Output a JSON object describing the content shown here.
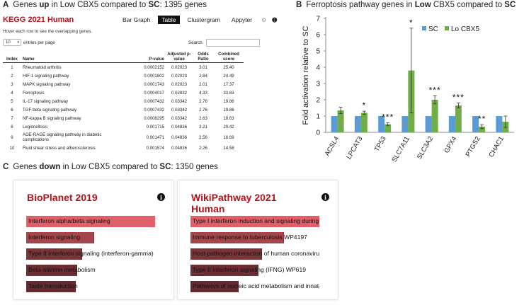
{
  "panel_a": {
    "letter": "A",
    "heading_pre": "Genes ",
    "heading_bold1": "up",
    "heading_mid": " in Low CBX5 compared to ",
    "heading_bold2": "SC",
    "heading_post": ": 1395 genes",
    "kegg_title": "KEGG 2021 Human",
    "tabs": [
      "Bar Graph",
      "Table",
      "Clustergram",
      "Appyter"
    ],
    "active_tab": "Table",
    "hover_note": "Hover each row to see the overlapping genes.",
    "entries_value": "10",
    "entries_label": "entries per page",
    "search_label": "Search:",
    "columns": {
      "index": "Index",
      "name": "Name",
      "pvalue": "P-value",
      "adj_pvalue": "Adjusted p-value",
      "odds": "Odds Ratio",
      "combined": "Combined score"
    },
    "rows": [
      {
        "index": "1",
        "name": "Rheumatoid arthritis",
        "pvalue": "0.0002152",
        "adj": "0.02023",
        "odds": "3.01",
        "combined": "25.40"
      },
      {
        "index": "2",
        "name": "HIF-1 signaling pathway",
        "pvalue": "0.0001802",
        "adj": "0.02023",
        "odds": "2.84",
        "combined": "24.49"
      },
      {
        "index": "3",
        "name": "MAPK signaling pathway",
        "pvalue": "0.0001743",
        "adj": "0.02023",
        "odds": "2.01",
        "combined": "17.37"
      },
      {
        "index": "4",
        "name": "Ferroptosis",
        "pvalue": "0.0004017",
        "adj": "0.02832",
        "odds": "4.33",
        "combined": "33.83"
      },
      {
        "index": "5",
        "name": "IL-17 signaling pathway",
        "pvalue": "0.0007432",
        "adj": "0.03342",
        "odds": "2.76",
        "combined": "19.86"
      },
      {
        "index": "6",
        "name": "TGF-beta signaling pathway",
        "pvalue": "0.0007432",
        "adj": "0.03342",
        "odds": "2.76",
        "combined": "19.86"
      },
      {
        "index": "7",
        "name": "NF-kappa B signaling pathway",
        "pvalue": "0.0008295",
        "adj": "0.03342",
        "odds": "2.63",
        "combined": "18.63"
      },
      {
        "index": "8",
        "name": "Legionellosis",
        "pvalue": "0.001715",
        "adj": "0.04836",
        "odds": "3.21",
        "combined": "20.42"
      },
      {
        "index": "9",
        "name": "AGE-RAGE signaling pathway in diabetic complications",
        "pvalue": "0.001471",
        "adj": "0.04836",
        "odds": "2.56",
        "combined": "16.69"
      },
      {
        "index": "10",
        "name": "Fluid shear stress and atherosclerosis",
        "pvalue": "0.001574",
        "adj": "0.04836",
        "odds": "2.26",
        "combined": "14.58"
      }
    ]
  },
  "panel_b": {
    "letter": "B",
    "heading_pre": "Ferroptosis pathway genes in ",
    "heading_bold1": "Low",
    "heading_mid": " CBX5 compared to ",
    "heading_bold2": "SC"
  },
  "chart_data": {
    "type": "bar",
    "ylabel": "Fold activation relative to SC",
    "ylim": [
      0,
      7
    ],
    "yticks": [
      "0",
      "1",
      "2",
      "3",
      "4",
      "5",
      "6",
      "7"
    ],
    "categories": [
      "ACSL4",
      "LPCAT3",
      "TP53",
      "SLC7A11",
      "SLC3A2",
      "GPX4",
      "PTGS2",
      "CHAC1"
    ],
    "series": [
      {
        "name": "SC",
        "color": "#5b9bd5",
        "values": [
          1,
          1,
          1,
          1,
          1,
          1,
          1,
          1
        ]
      },
      {
        "name": "Lo CBX5",
        "color": "#70ad47",
        "values": [
          1.35,
          1.2,
          0.5,
          3.8,
          2.0,
          1.65,
          0.35,
          0.65
        ],
        "errors": [
          0.2,
          0.1,
          0.08,
          2.6,
          0.25,
          0.15,
          0.12,
          0.35
        ]
      }
    ],
    "significance": [
      "",
      "*",
      "***",
      "*",
      "***",
      "***",
      "**",
      ""
    ],
    "legend_position": "top-right",
    "grid": false
  },
  "panel_c": {
    "letter": "C",
    "heading_pre": "Genes ",
    "heading_bold1": "down",
    "heading_mid": " in Low CBX5 compared to ",
    "heading_bold2": "SC",
    "heading_post": ": 1350 genes",
    "cards": [
      {
        "title": "BioPlanet 2019",
        "terms": [
          {
            "label": "Interferon alpha/beta signaling",
            "fill": 1.0,
            "color": "#e06069"
          },
          {
            "label": "Interferon signaling",
            "fill": 0.52,
            "color": "#a3464c"
          },
          {
            "label": "Type II interferon signaling (interferon-gamma)",
            "fill": 0.43,
            "color": "#7a3438"
          },
          {
            "label": "Beta-alanine metabolism",
            "fill": 0.39,
            "color": "#6a2d31"
          },
          {
            "label": "Taste transduction",
            "fill": 0.38,
            "color": "#652b2e"
          }
        ]
      },
      {
        "title": "WikiPathway 2021 Human",
        "terms": [
          {
            "label": "Type I interferon induction and signaling during",
            "fill": 1.0,
            "color": "#e06069"
          },
          {
            "label": "Immune response to tuberculosis WP4197",
            "fill": 0.72,
            "color": "#a3464c"
          },
          {
            "label": "Host-pathogen interaction of human coronavirus",
            "fill": 0.55,
            "color": "#7a3438"
          },
          {
            "label": "Type II interferon signaling (IFNG) WP619",
            "fill": 0.52,
            "color": "#6a2d31"
          },
          {
            "label": "Pathways of nucleic acid metabolism and innate",
            "fill": 0.37,
            "color": "#652b2e"
          }
        ]
      }
    ]
  }
}
